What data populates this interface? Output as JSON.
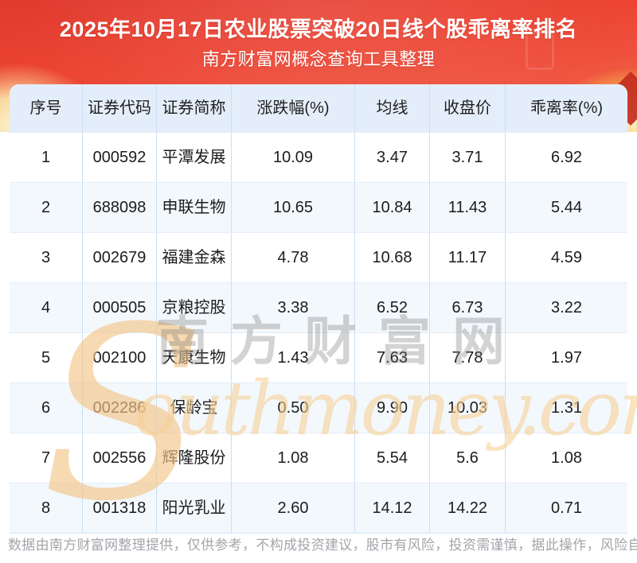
{
  "chart_data": {
    "type": "table",
    "title": "2025年10月17日农业股票突破20日线个股乖离率排名",
    "subtitle": "南方财富网概念查询工具整理",
    "columns": [
      "序号",
      "证券代码",
      "证券简称",
      "涨跌幅(%)",
      "均线",
      "收盘价",
      "乖离率(%)"
    ],
    "rows": [
      [
        "1",
        "000592",
        "平潭发展",
        "10.09",
        "3.47",
        "3.71",
        "6.92"
      ],
      [
        "2",
        "688098",
        "申联生物",
        "10.65",
        "10.84",
        "11.43",
        "5.44"
      ],
      [
        "3",
        "002679",
        "福建金森",
        "4.78",
        "10.68",
        "11.17",
        "4.59"
      ],
      [
        "4",
        "000505",
        "京粮控股",
        "3.38",
        "6.52",
        "6.73",
        "3.22"
      ],
      [
        "5",
        "002100",
        "天康生物",
        "1.43",
        "7.63",
        "7.78",
        "1.97"
      ],
      [
        "6",
        "002286",
        "保龄宝",
        "0.50",
        "9.90",
        "10.03",
        "1.31"
      ],
      [
        "7",
        "002556",
        "辉隆股份",
        "1.08",
        "5.54",
        "5.6",
        "1.08"
      ],
      [
        "8",
        "001318",
        "阳光乳业",
        "2.60",
        "14.12",
        "14.22",
        "0.71"
      ]
    ]
  },
  "watermark": {
    "s_logo": "S",
    "site_latin": "outhmoney.com",
    "site_chinese": "南方财富网"
  },
  "footer": {
    "disclaimer": "数据由南方财富网整理提供，仅供参考，不构成投资建议，股市有风险，投资需谨慎，据此操作，风险自担。"
  },
  "colors": {
    "banner_red": "#ec4534",
    "banner_dark_wedge": "#c32a1f",
    "header_row_bg": "#e4eefa",
    "alt_row_bg": "#f3f8fd",
    "grid_border": "#cbdff2",
    "cell_text": "#1c1c1c",
    "footer_text": "#a2a5aa",
    "watermark_orange": "#f3c68a",
    "watermark_gray": "#9a9a9a"
  }
}
